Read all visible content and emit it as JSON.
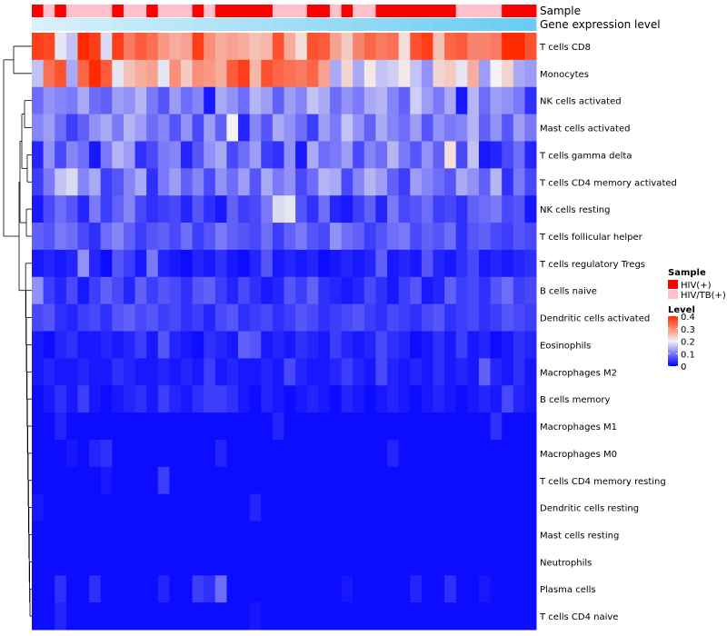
{
  "chart_data": {
    "type": "heatmap",
    "title": "",
    "annotation_tracks": [
      "Sample",
      "Gene expression level"
    ],
    "rows": [
      "T cells CD8",
      "Monocytes",
      "NK cells activated",
      "Mast cells activated",
      "T cells gamma delta",
      "T cells CD4 memory activated",
      "NK cells resting",
      "T cells follicular helper",
      "T cells regulatory  Tregs",
      "B cells naive",
      "Dendritic cells activated",
      "Eosinophils",
      "Macrophages M2",
      "B cells memory",
      "Macrophages M1",
      "Macrophages M0",
      "T cells CD4 memory resting",
      "Dendritic cells resting",
      "Mast cells resting",
      "Neutrophils",
      "Plasma cells",
      "T cells CD4 naive"
    ],
    "sample_groups": [
      "HIV(+)",
      "HIV/TB(+)",
      "HIV(+)",
      "HIV/TB(+)",
      "HIV/TB(+)",
      "HIV/TB(+)",
      "HIV/TB(+)",
      "HIV(+)",
      "HIV/TB(+)",
      "HIV/TB(+)",
      "HIV(+)",
      "HIV/TB(+)",
      "HIV/TB(+)",
      "HIV/TB(+)",
      "HIV(+)",
      "HIV/TB(+)",
      "HIV(+)",
      "HIV(+)",
      "HIV(+)",
      "HIV(+)",
      "HIV(+)",
      "HIV/TB(+)",
      "HIV/TB(+)",
      "HIV/TB(+)",
      "HIV(+)",
      "HIV(+)",
      "HIV/TB(+)",
      "HIV(+)",
      "HIV/TB(+)",
      "HIV/TB(+)",
      "HIV(+)",
      "HIV(+)",
      "HIV(+)",
      "HIV(+)",
      "HIV(+)",
      "HIV(+)",
      "HIV(+)",
      "HIV/TB(+)",
      "HIV/TB(+)",
      "HIV/TB(+)",
      "HIV/TB(+)",
      "HIV(+)",
      "HIV(+)",
      "HIV(+)"
    ],
    "gene_expression_levels": [
      0.05,
      0.07,
      0.09,
      0.11,
      0.13,
      0.15,
      0.17,
      0.19,
      0.21,
      0.23,
      0.25,
      0.27,
      0.29,
      0.31,
      0.33,
      0.35,
      0.37,
      0.39,
      0.41,
      0.43,
      0.45,
      0.47,
      0.49,
      0.51,
      0.53,
      0.55,
      0.57,
      0.59,
      0.61,
      0.63,
      0.65,
      0.67,
      0.69,
      0.71,
      0.73,
      0.75,
      0.77,
      0.79,
      0.81,
      0.83,
      0.85,
      0.87,
      0.89,
      0.91
    ],
    "values": [
      [
        0.38,
        0.37,
        0.19,
        0.16,
        0.4,
        0.38,
        0.18,
        0.38,
        0.32,
        0.35,
        0.33,
        0.29,
        0.27,
        0.28,
        0.38,
        0.3,
        0.27,
        0.28,
        0.27,
        0.25,
        0.26,
        0.36,
        0.27,
        0.22,
        0.36,
        0.35,
        0.28,
        0.24,
        0.31,
        0.34,
        0.32,
        0.33,
        0.22,
        0.36,
        0.38,
        0.25,
        0.34,
        0.35,
        0.31,
        0.31,
        0.32,
        0.4,
        0.4,
        0.36
      ],
      [
        0.16,
        0.33,
        0.36,
        0.14,
        0.34,
        0.4,
        0.35,
        0.19,
        0.25,
        0.27,
        0.28,
        0.19,
        0.3,
        0.24,
        0.3,
        0.29,
        0.27,
        0.35,
        0.38,
        0.26,
        0.36,
        0.34,
        0.33,
        0.32,
        0.34,
        0.28,
        0.14,
        0.23,
        0.14,
        0.21,
        0.16,
        0.17,
        0.21,
        0.16,
        0.12,
        0.23,
        0.24,
        0.19,
        0.27,
        0.13,
        0.2,
        0.23,
        0.14,
        0.13
      ],
      [
        0.09,
        0.12,
        0.11,
        0.1,
        0.14,
        0.09,
        0.08,
        0.13,
        0.12,
        0.15,
        0.1,
        0.07,
        0.13,
        0.09,
        0.11,
        0.02,
        0.14,
        0.12,
        0.09,
        0.15,
        0.13,
        0.08,
        0.13,
        0.11,
        0.16,
        0.14,
        0.09,
        0.12,
        0.1,
        0.14,
        0.15,
        0.11,
        0.08,
        0.17,
        0.13,
        0.1,
        0.14,
        0.02,
        0.15,
        0.09,
        0.13,
        0.12,
        0.1,
        0.04
      ],
      [
        0.11,
        0.13,
        0.09,
        0.05,
        0.08,
        0.12,
        0.14,
        0.1,
        0.15,
        0.13,
        0.09,
        0.11,
        0.07,
        0.12,
        0.06,
        0.13,
        0.08,
        0.2,
        0.03,
        0.11,
        0.07,
        0.14,
        0.12,
        0.09,
        0.05,
        0.13,
        0.1,
        0.16,
        0.12,
        0.08,
        0.14,
        0.11,
        0.09,
        0.13,
        0.07,
        0.12,
        0.1,
        0.11,
        0.15,
        0.08,
        0.12,
        0.07,
        0.13,
        0.1
      ],
      [
        0.03,
        0.12,
        0.06,
        0.11,
        0.09,
        0.02,
        0.1,
        0.15,
        0.13,
        0.04,
        0.06,
        0.1,
        0.11,
        0.03,
        0.07,
        0.12,
        0.14,
        0.06,
        0.09,
        0.13,
        0.05,
        0.04,
        0.12,
        0.02,
        0.14,
        0.09,
        0.1,
        0.13,
        0.06,
        0.11,
        0.09,
        0.15,
        0.1,
        0.07,
        0.12,
        0.08,
        0.22,
        0.06,
        0.16,
        0.02,
        0.03,
        0.06,
        0.09,
        0.03
      ],
      [
        0.05,
        0.1,
        0.16,
        0.18,
        0.11,
        0.14,
        0.05,
        0.07,
        0.11,
        0.14,
        0.04,
        0.1,
        0.13,
        0.08,
        0.11,
        0.06,
        0.12,
        0.09,
        0.13,
        0.07,
        0.14,
        0.1,
        0.12,
        0.06,
        0.09,
        0.15,
        0.14,
        0.06,
        0.11,
        0.15,
        0.13,
        0.08,
        0.05,
        0.13,
        0.11,
        0.09,
        0.07,
        0.14,
        0.12,
        0.08,
        0.15,
        0.04,
        0.1,
        0.06
      ],
      [
        0.02,
        0.06,
        0.09,
        0.07,
        0.03,
        0.1,
        0.05,
        0.08,
        0.11,
        0.06,
        0.04,
        0.05,
        0.06,
        0.03,
        0.07,
        0.04,
        0.02,
        0.08,
        0.05,
        0.06,
        0.1,
        0.18,
        0.19,
        0.07,
        0.04,
        0.09,
        0.03,
        0.02,
        0.05,
        0.08,
        0.03,
        0.1,
        0.06,
        0.07,
        0.09,
        0.05,
        0.06,
        0.04,
        0.08,
        0.09,
        0.1,
        0.06,
        0.07,
        0.02
      ],
      [
        0.08,
        0.07,
        0.1,
        0.09,
        0.06,
        0.04,
        0.09,
        0.11,
        0.08,
        0.05,
        0.07,
        0.08,
        0.06,
        0.09,
        0.05,
        0.07,
        0.1,
        0.08,
        0.07,
        0.06,
        0.09,
        0.05,
        0.08,
        0.1,
        0.07,
        0.06,
        0.12,
        0.09,
        0.08,
        0.05,
        0.07,
        0.09,
        0.1,
        0.06,
        0.08,
        0.07,
        0.09,
        0.04,
        0.07,
        0.08,
        0.06,
        0.05,
        0.07,
        0.06
      ],
      [
        0.02,
        0.03,
        0.02,
        0.03,
        0.12,
        0.03,
        0.01,
        0.07,
        0.05,
        0.02,
        0.1,
        0.03,
        0.02,
        0.01,
        0.03,
        0.02,
        0.04,
        0.02,
        0.01,
        0.03,
        0.07,
        0.02,
        0.03,
        0.02,
        0.03,
        0.01,
        0.02,
        0.03,
        0.02,
        0.03,
        0.08,
        0.02,
        0.03,
        0.02,
        0.07,
        0.03,
        0.02,
        0.04,
        0.06,
        0.02,
        0.03,
        0.02,
        0.03,
        0.04
      ],
      [
        0.12,
        0.05,
        0.03,
        0.06,
        0.02,
        0.05,
        0.08,
        0.06,
        0.03,
        0.08,
        0.05,
        0.07,
        0.06,
        0.04,
        0.07,
        0.08,
        0.05,
        0.03,
        0.06,
        0.04,
        0.02,
        0.03,
        0.07,
        0.05,
        0.08,
        0.04,
        0.03,
        0.02,
        0.03,
        0.06,
        0.04,
        0.02,
        0.05,
        0.07,
        0.02,
        0.03,
        0.08,
        0.05,
        0.06,
        0.04,
        0.07,
        0.09,
        0.05,
        0.06
      ],
      [
        0.06,
        0.07,
        0.04,
        0.03,
        0.05,
        0.06,
        0.04,
        0.07,
        0.08,
        0.06,
        0.07,
        0.05,
        0.06,
        0.04,
        0.05,
        0.03,
        0.06,
        0.07,
        0.04,
        0.05,
        0.06,
        0.04,
        0.05,
        0.07,
        0.06,
        0.04,
        0.05,
        0.06,
        0.07,
        0.05,
        0.04,
        0.06,
        0.05,
        0.04,
        0.06,
        0.07,
        0.04,
        0.05,
        0.06,
        0.04,
        0.05,
        0.07,
        0.06,
        0.05
      ],
      [
        0.02,
        0.01,
        0.03,
        0.04,
        0.02,
        0.02,
        0.03,
        0.02,
        0.03,
        0.05,
        0.02,
        0.07,
        0.03,
        0.02,
        0.01,
        0.04,
        0.03,
        0.02,
        0.08,
        0.07,
        0.02,
        0.03,
        0.02,
        0.04,
        0.03,
        0.02,
        0.05,
        0.03,
        0.02,
        0.03,
        0.06,
        0.04,
        0.03,
        0.01,
        0.02,
        0.04,
        0.02,
        0.05,
        0.02,
        0.03,
        0.01,
        0.02,
        0.04,
        0.03
      ],
      [
        0.02,
        0.03,
        0.02,
        0.02,
        0.03,
        0.02,
        0.02,
        0.04,
        0.03,
        0.02,
        0.02,
        0.03,
        0.02,
        0.03,
        0.02,
        0.05,
        0.02,
        0.03,
        0.02,
        0.02,
        0.03,
        0.02,
        0.06,
        0.03,
        0.02,
        0.02,
        0.03,
        0.05,
        0.03,
        0.02,
        0.06,
        0.03,
        0.02,
        0.03,
        0.02,
        0.04,
        0.02,
        0.03,
        0.02,
        0.08,
        0.03,
        0.02,
        0.04,
        0.02
      ],
      [
        0.01,
        0.02,
        0.04,
        0.02,
        0.05,
        0.02,
        0.01,
        0.02,
        0.03,
        0.04,
        0.02,
        0.05,
        0.03,
        0.02,
        0.04,
        0.05,
        0.05,
        0.04,
        0.02,
        0.01,
        0.03,
        0.02,
        0.01,
        0.02,
        0.03,
        0.02,
        0.01,
        0.03,
        0.02,
        0.01,
        0.02,
        0.03,
        0.02,
        0.01,
        0.02,
        0.03,
        0.02,
        0.01,
        0.02,
        0.03,
        0.02,
        0.06,
        0.03,
        0.02
      ],
      [
        0.01,
        0.01,
        0.03,
        0.01,
        0.01,
        0.01,
        0.01,
        0.01,
        0.01,
        0.01,
        0.01,
        0.01,
        0.01,
        0.01,
        0.01,
        0.01,
        0.01,
        0.01,
        0.01,
        0.01,
        0.01,
        0.03,
        0.01,
        0.01,
        0.01,
        0.01,
        0.01,
        0.01,
        0.01,
        0.01,
        0.01,
        0.01,
        0.01,
        0.01,
        0.01,
        0.01,
        0.01,
        0.01,
        0.01,
        0.01,
        0.04,
        0.01,
        0.01,
        0.01
      ],
      [
        0.01,
        0.01,
        0.01,
        0.02,
        0.01,
        0.03,
        0.04,
        0.01,
        0.01,
        0.01,
        0.01,
        0.01,
        0.01,
        0.01,
        0.01,
        0.01,
        0.03,
        0.01,
        0.01,
        0.01,
        0.01,
        0.01,
        0.01,
        0.01,
        0.01,
        0.01,
        0.01,
        0.01,
        0.01,
        0.01,
        0.01,
        0.03,
        0.01,
        0.01,
        0.01,
        0.01,
        0.01,
        0.01,
        0.01,
        0.01,
        0.01,
        0.01,
        0.01,
        0.01
      ],
      [
        0.01,
        0.01,
        0.01,
        0.01,
        0.01,
        0.01,
        0.02,
        0.01,
        0.01,
        0.01,
        0.01,
        0.05,
        0.01,
        0.01,
        0.01,
        0.01,
        0.01,
        0.01,
        0.01,
        0.01,
        0.01,
        0.01,
        0.01,
        0.01,
        0.01,
        0.01,
        0.01,
        0.01,
        0.01,
        0.01,
        0.01,
        0.01,
        0.01,
        0.01,
        0.01,
        0.01,
        0.01,
        0.01,
        0.01,
        0.01,
        0.01,
        0.01,
        0.01,
        0.01
      ],
      [
        0.02,
        0.01,
        0.01,
        0.01,
        0.01,
        0.01,
        0.01,
        0.01,
        0.01,
        0.01,
        0.01,
        0.01,
        0.01,
        0.01,
        0.01,
        0.01,
        0.01,
        0.01,
        0.01,
        0.03,
        0.01,
        0.01,
        0.01,
        0.01,
        0.01,
        0.01,
        0.01,
        0.01,
        0.01,
        0.01,
        0.01,
        0.01,
        0.01,
        0.01,
        0.01,
        0.01,
        0.01,
        0.01,
        0.01,
        0.01,
        0.01,
        0.01,
        0.01,
        0.01
      ],
      [
        0.01,
        0.01,
        0.01,
        0.01,
        0.01,
        0.01,
        0.01,
        0.01,
        0.01,
        0.01,
        0.01,
        0.01,
        0.01,
        0.01,
        0.01,
        0.01,
        0.01,
        0.01,
        0.01,
        0.01,
        0.01,
        0.01,
        0.01,
        0.01,
        0.01,
        0.01,
        0.01,
        0.01,
        0.01,
        0.01,
        0.01,
        0.01,
        0.01,
        0.01,
        0.01,
        0.01,
        0.01,
        0.01,
        0.01,
        0.01,
        0.01,
        0.01,
        0.01,
        0.01
      ],
      [
        0.01,
        0.01,
        0.01,
        0.01,
        0.01,
        0.01,
        0.01,
        0.01,
        0.01,
        0.01,
        0.01,
        0.01,
        0.01,
        0.01,
        0.01,
        0.01,
        0.01,
        0.01,
        0.01,
        0.01,
        0.01,
        0.01,
        0.01,
        0.01,
        0.01,
        0.01,
        0.01,
        0.01,
        0.01,
        0.01,
        0.01,
        0.01,
        0.01,
        0.01,
        0.01,
        0.01,
        0.01,
        0.01,
        0.01,
        0.01,
        0.01,
        0.01,
        0.01,
        0.01
      ],
      [
        0.01,
        0.01,
        0.04,
        0.01,
        0.01,
        0.04,
        0.01,
        0.01,
        0.01,
        0.01,
        0.01,
        0.03,
        0.01,
        0.01,
        0.05,
        0.04,
        0.09,
        0.01,
        0.01,
        0.01,
        0.01,
        0.01,
        0.01,
        0.01,
        0.01,
        0.01,
        0.01,
        0.02,
        0.01,
        0.01,
        0.01,
        0.01,
        0.01,
        0.03,
        0.01,
        0.01,
        0.04,
        0.01,
        0.01,
        0.02,
        0.01,
        0.01,
        0.01,
        0.01
      ],
      [
        0.01,
        0.01,
        0.03,
        0.01,
        0.01,
        0.01,
        0.01,
        0.01,
        0.01,
        0.01,
        0.01,
        0.01,
        0.01,
        0.01,
        0.01,
        0.01,
        0.01,
        0.01,
        0.01,
        0.02,
        0.01,
        0.01,
        0.01,
        0.01,
        0.01,
        0.01,
        0.01,
        0.01,
        0.01,
        0.01,
        0.01,
        0.01,
        0.01,
        0.01,
        0.01,
        0.01,
        0.01,
        0.01,
        0.01,
        0.01,
        0.01,
        0.01,
        0.01,
        0.01
      ]
    ],
    "color_scale": {
      "stops": [
        {
          "value": 0.0,
          "color": "#0000ff"
        },
        {
          "value": 0.2,
          "color": "#f2f2f2"
        },
        {
          "value": 0.4,
          "color": "#ff2a00"
        }
      ]
    },
    "legend": {
      "placement": "right",
      "sample_title": "Sample",
      "sample_entries": [
        {
          "label": "HIV(+)",
          "color": "#ff0000"
        },
        {
          "label": "HIV/TB(+)",
          "color": "#ffc0cb"
        }
      ],
      "level_title": "Level",
      "level_ticks": [
        "0.4",
        "0.3",
        "0.2",
        "0.1",
        "0"
      ],
      "level_tick_values": [
        0.4,
        0.3,
        0.2,
        0.1,
        0.0
      ]
    },
    "expression_track_colors": {
      "low": "#dff3fa",
      "high": "#5ec8f2"
    }
  }
}
